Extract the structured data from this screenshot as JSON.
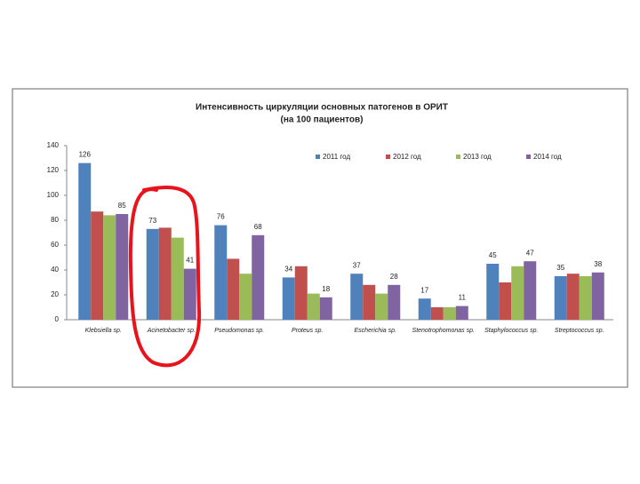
{
  "chart_data": {
    "type": "bar",
    "title": "Интенсивность циркуляции основных патогенов в ОРИТ",
    "subtitle": "(на 100 пациентов)",
    "categories": [
      "Klebsiella sp.",
      "Acinetobacter sp.",
      "Pseudomonas sp.",
      "Proteus sp.",
      "Escherichia sp.",
      "Stenotrophomonas sp.",
      "Staphylococcus sp.",
      "Streptococcus sp."
    ],
    "series": [
      {
        "name": "2011 год",
        "color": "#4f81bd",
        "show_labels": true,
        "values": [
          126,
          73,
          76,
          34,
          37,
          17,
          45,
          35
        ]
      },
      {
        "name": "2012 год",
        "color": "#c0504d",
        "show_labels": false,
        "values": [
          87,
          74,
          49,
          43,
          28,
          10,
          30,
          37
        ]
      },
      {
        "name": "2013 год",
        "color": "#9bbb59",
        "show_labels": false,
        "values": [
          84,
          66,
          37,
          21,
          21,
          10,
          43,
          35
        ]
      },
      {
        "name": "2014 год",
        "color": "#8064a2",
        "show_labels": true,
        "values": [
          85,
          41,
          68,
          18,
          28,
          11,
          47,
          38
        ]
      }
    ],
    "ylim": [
      0,
      140
    ],
    "yticks": [
      0,
      20,
      40,
      60,
      80,
      100,
      120,
      140
    ],
    "grid": false,
    "legend": "top-right"
  }
}
